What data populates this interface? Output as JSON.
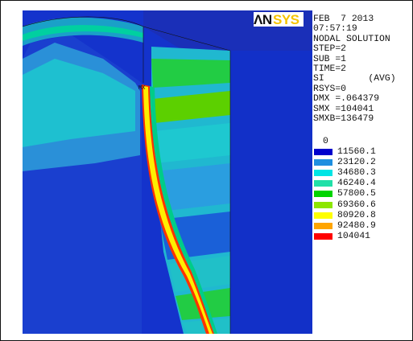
{
  "logo": {
    "text_an": "ΛN",
    "text_sys": "SYS",
    "color_an": "#111111",
    "color_sys": "#f5c400"
  },
  "info": {
    "lines": [
      "FEB  7 2013",
      "07:57:19",
      "NODAL SOLUTION",
      "STEP=2",
      "SUB =1",
      "TIME=2",
      "SI        (AVG)",
      "RSYS=0",
      "DMX =.064379",
      "SMX =104041",
      "SMXB=136479"
    ]
  },
  "legend": {
    "zero_label": "0",
    "items": [
      {
        "value": "11560.1",
        "color": "#0000cc"
      },
      {
        "value": "23120.2",
        "color": "#1e8fe0"
      },
      {
        "value": "34680.3",
        "color": "#00e5e5"
      },
      {
        "value": "46240.4",
        "color": "#20e0a8"
      },
      {
        "value": "57800.5",
        "color": "#00d400"
      },
      {
        "value": "69360.6",
        "color": "#8ce600"
      },
      {
        "value": "80920.8",
        "color": "#ffff00"
      },
      {
        "value": "92480.9",
        "color": "#ffa500"
      },
      {
        "value": "104041",
        "color": "#ff0000"
      }
    ]
  },
  "model": {
    "max_label": "MX"
  }
}
